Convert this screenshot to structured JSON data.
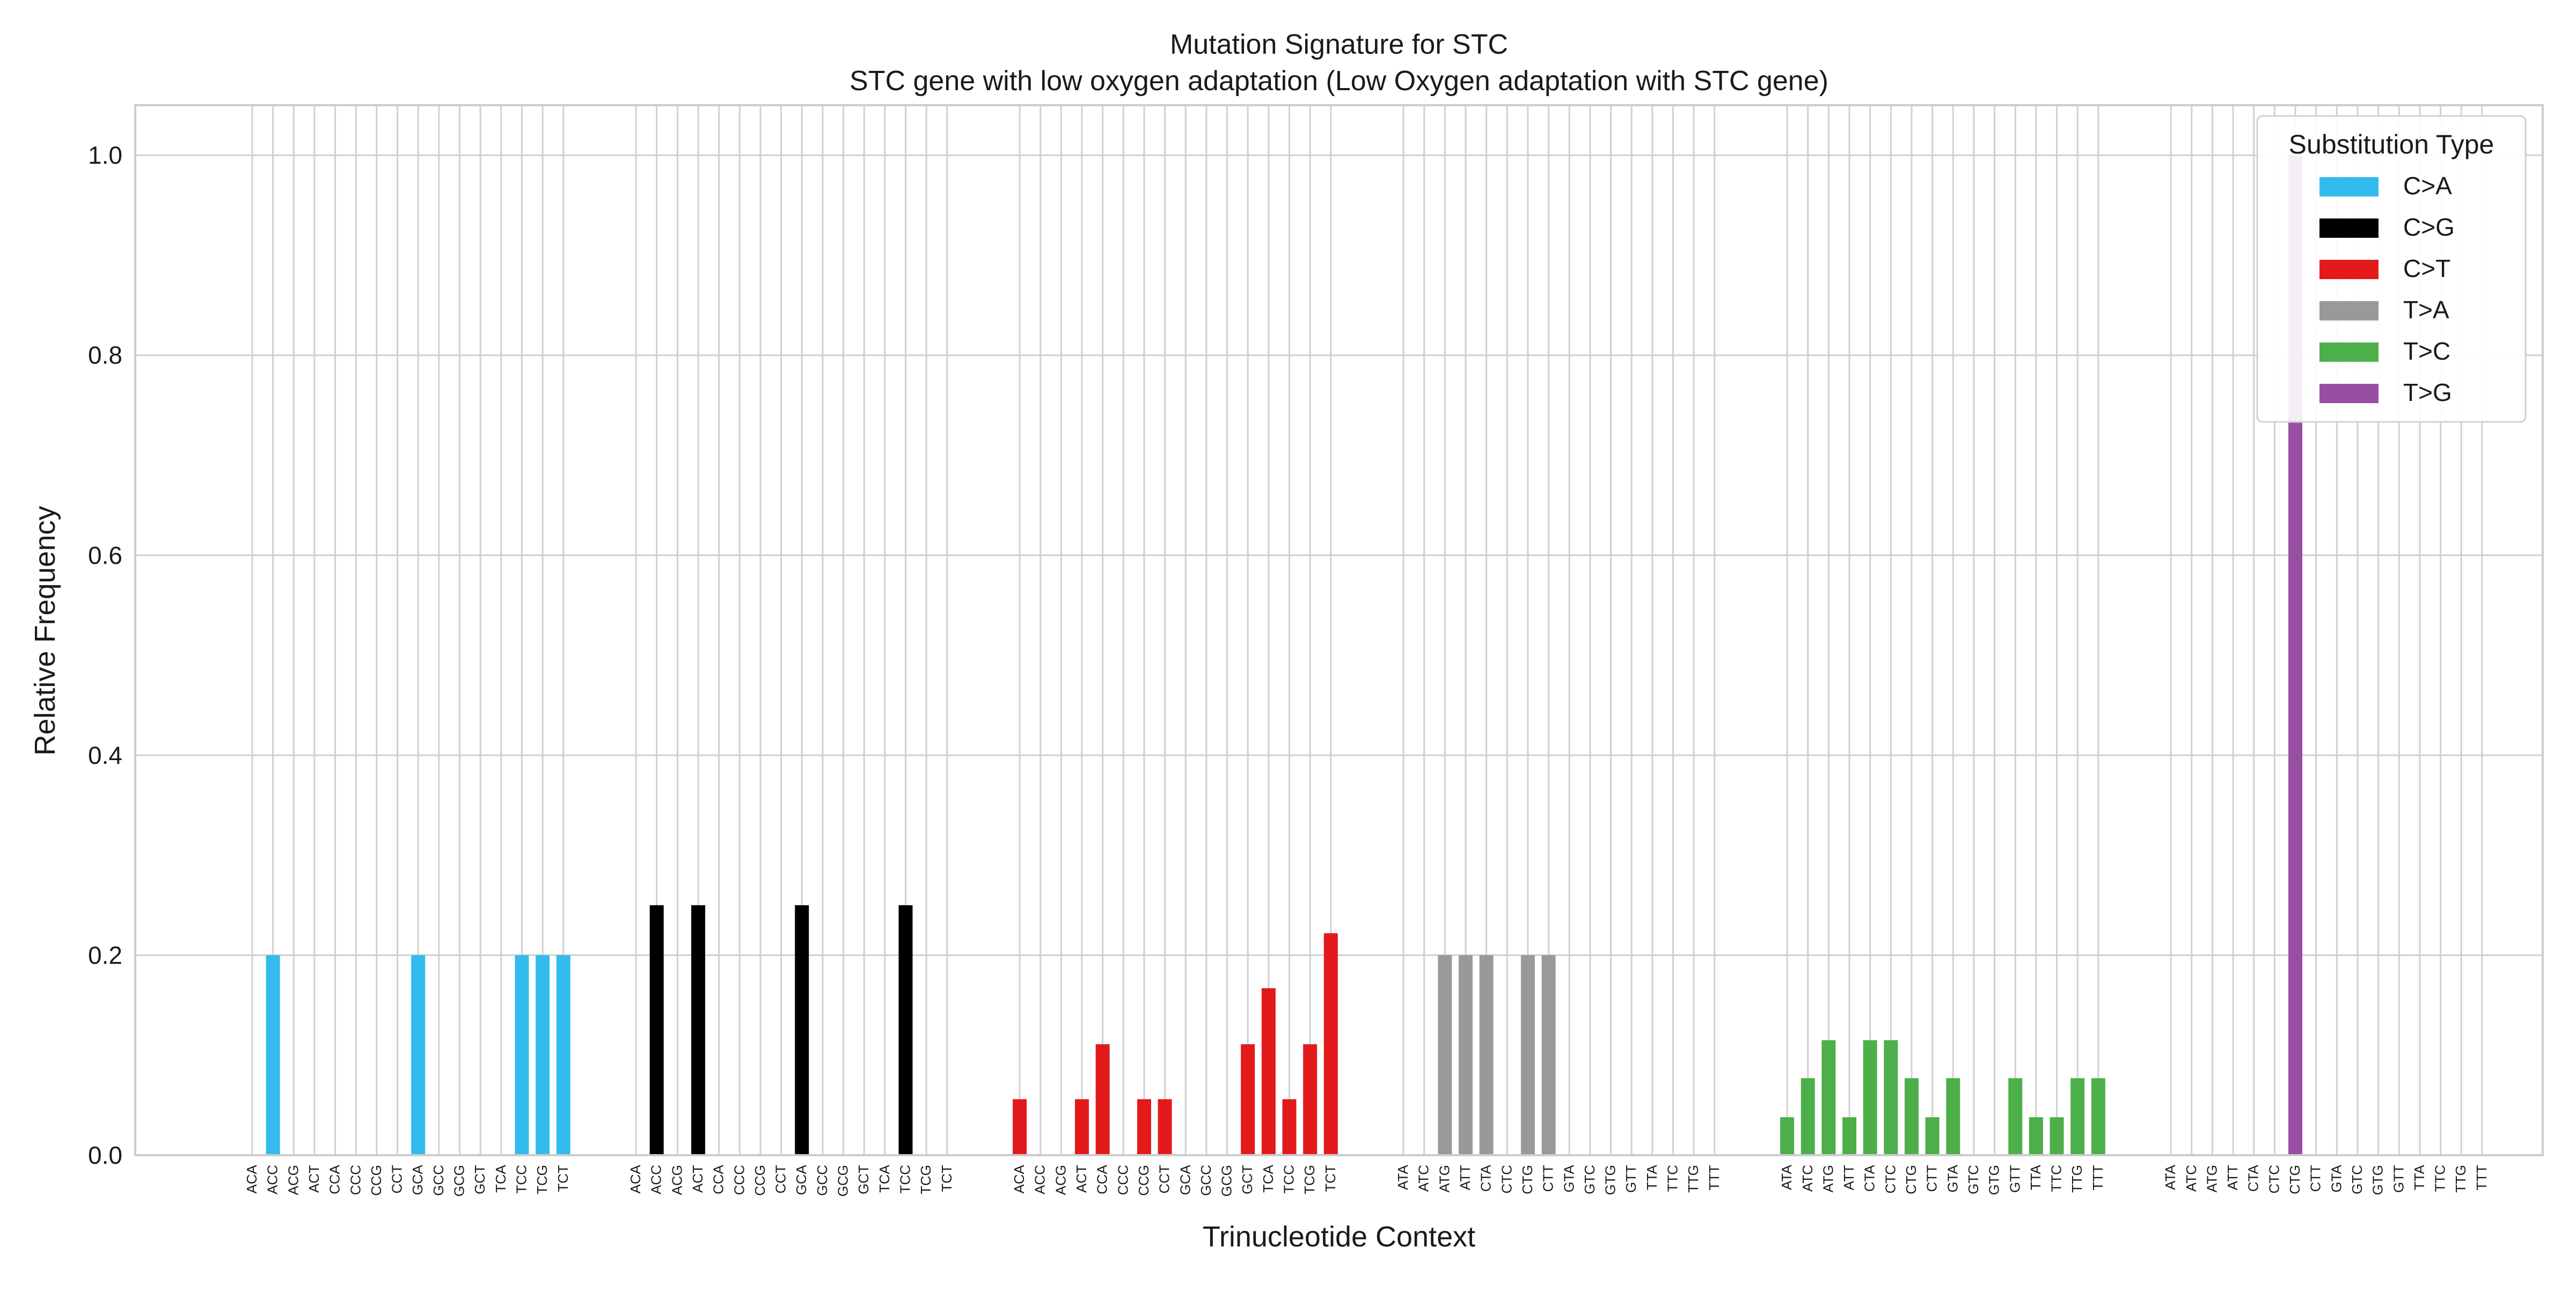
{
  "chart_data": {
    "type": "bar",
    "title": "Mutation Signature for STC",
    "subtitle": "STC gene with low oxygen adaptation (Low Oxygen adaptation with STC gene)",
    "xlabel": "Trinucleotide Context",
    "ylabel": "Relative Frequency",
    "ylim": [
      0,
      1.05
    ],
    "yticks": [
      "0.0",
      "0.2",
      "0.4",
      "0.6",
      "0.8",
      "1.0"
    ],
    "grid": true,
    "legend": {
      "title": "Substitution Type",
      "placement": "top-right"
    },
    "groups": [
      {
        "name": "C>A",
        "color": "#33bbee",
        "categories": [
          "ACA",
          "ACC",
          "ACG",
          "ACT",
          "CCA",
          "CCC",
          "CCG",
          "CCT",
          "GCA",
          "GCC",
          "GCG",
          "GCT",
          "TCA",
          "TCC",
          "TCG",
          "TCT"
        ],
        "values": [
          0,
          0.2,
          0,
          0,
          0,
          0,
          0,
          0,
          0.2,
          0,
          0,
          0,
          0,
          0.2,
          0.2,
          0.2
        ]
      },
      {
        "name": "C>G",
        "color": "#000000",
        "categories": [
          "ACA",
          "ACC",
          "ACG",
          "ACT",
          "CCA",
          "CCC",
          "CCG",
          "CCT",
          "GCA",
          "GCC",
          "GCG",
          "GCT",
          "TCA",
          "TCC",
          "TCG",
          "TCT"
        ],
        "values": [
          0,
          0.25,
          0,
          0.25,
          0,
          0,
          0,
          0,
          0.25,
          0,
          0,
          0,
          0,
          0.25,
          0,
          0
        ]
      },
      {
        "name": "C>T",
        "color": "#e31a1c",
        "categories": [
          "ACA",
          "ACC",
          "ACG",
          "ACT",
          "CCA",
          "CCC",
          "CCG",
          "CCT",
          "GCA",
          "GCC",
          "GCG",
          "GCT",
          "TCA",
          "TCC",
          "TCG",
          "TCT"
        ],
        "values": [
          0.056,
          0,
          0,
          0.056,
          0.111,
          0,
          0.056,
          0.056,
          0,
          0,
          0,
          0.111,
          0.167,
          0.056,
          0.111,
          0.222
        ]
      },
      {
        "name": "T>A",
        "color": "#999999",
        "categories": [
          "ATA",
          "ATC",
          "ATG",
          "ATT",
          "CTA",
          "CTC",
          "CTG",
          "CTT",
          "GTA",
          "GTC",
          "GTG",
          "GTT",
          "TTA",
          "TTC",
          "TTG",
          "TTT"
        ],
        "values": [
          0,
          0,
          0.2,
          0.2,
          0.2,
          0,
          0.2,
          0.2,
          0,
          0,
          0,
          0,
          0,
          0,
          0,
          0
        ]
      },
      {
        "name": "T>C",
        "color": "#4daf4a",
        "categories": [
          "ATA",
          "ATC",
          "ATG",
          "ATT",
          "CTA",
          "CTC",
          "CTG",
          "CTT",
          "GTA",
          "GTC",
          "GTG",
          "GTT",
          "TTA",
          "TTC",
          "TTG",
          "TTT"
        ],
        "values": [
          0.038,
          0.077,
          0.115,
          0.038,
          0.115,
          0.115,
          0.077,
          0.038,
          0.077,
          0,
          0,
          0.077,
          0.038,
          0.038,
          0.077,
          0.077
        ]
      },
      {
        "name": "T>G",
        "color": "#984ea3",
        "categories": [
          "ATA",
          "ATC",
          "ATG",
          "ATT",
          "CTA",
          "CTC",
          "CTG",
          "CTT",
          "GTA",
          "GTC",
          "GTG",
          "GTT",
          "TTA",
          "TTC",
          "TTG",
          "TTT"
        ],
        "values": [
          0,
          0,
          0,
          0,
          0,
          0,
          1.0,
          0,
          0,
          0,
          0,
          0,
          0,
          0,
          0,
          0
        ]
      }
    ]
  }
}
